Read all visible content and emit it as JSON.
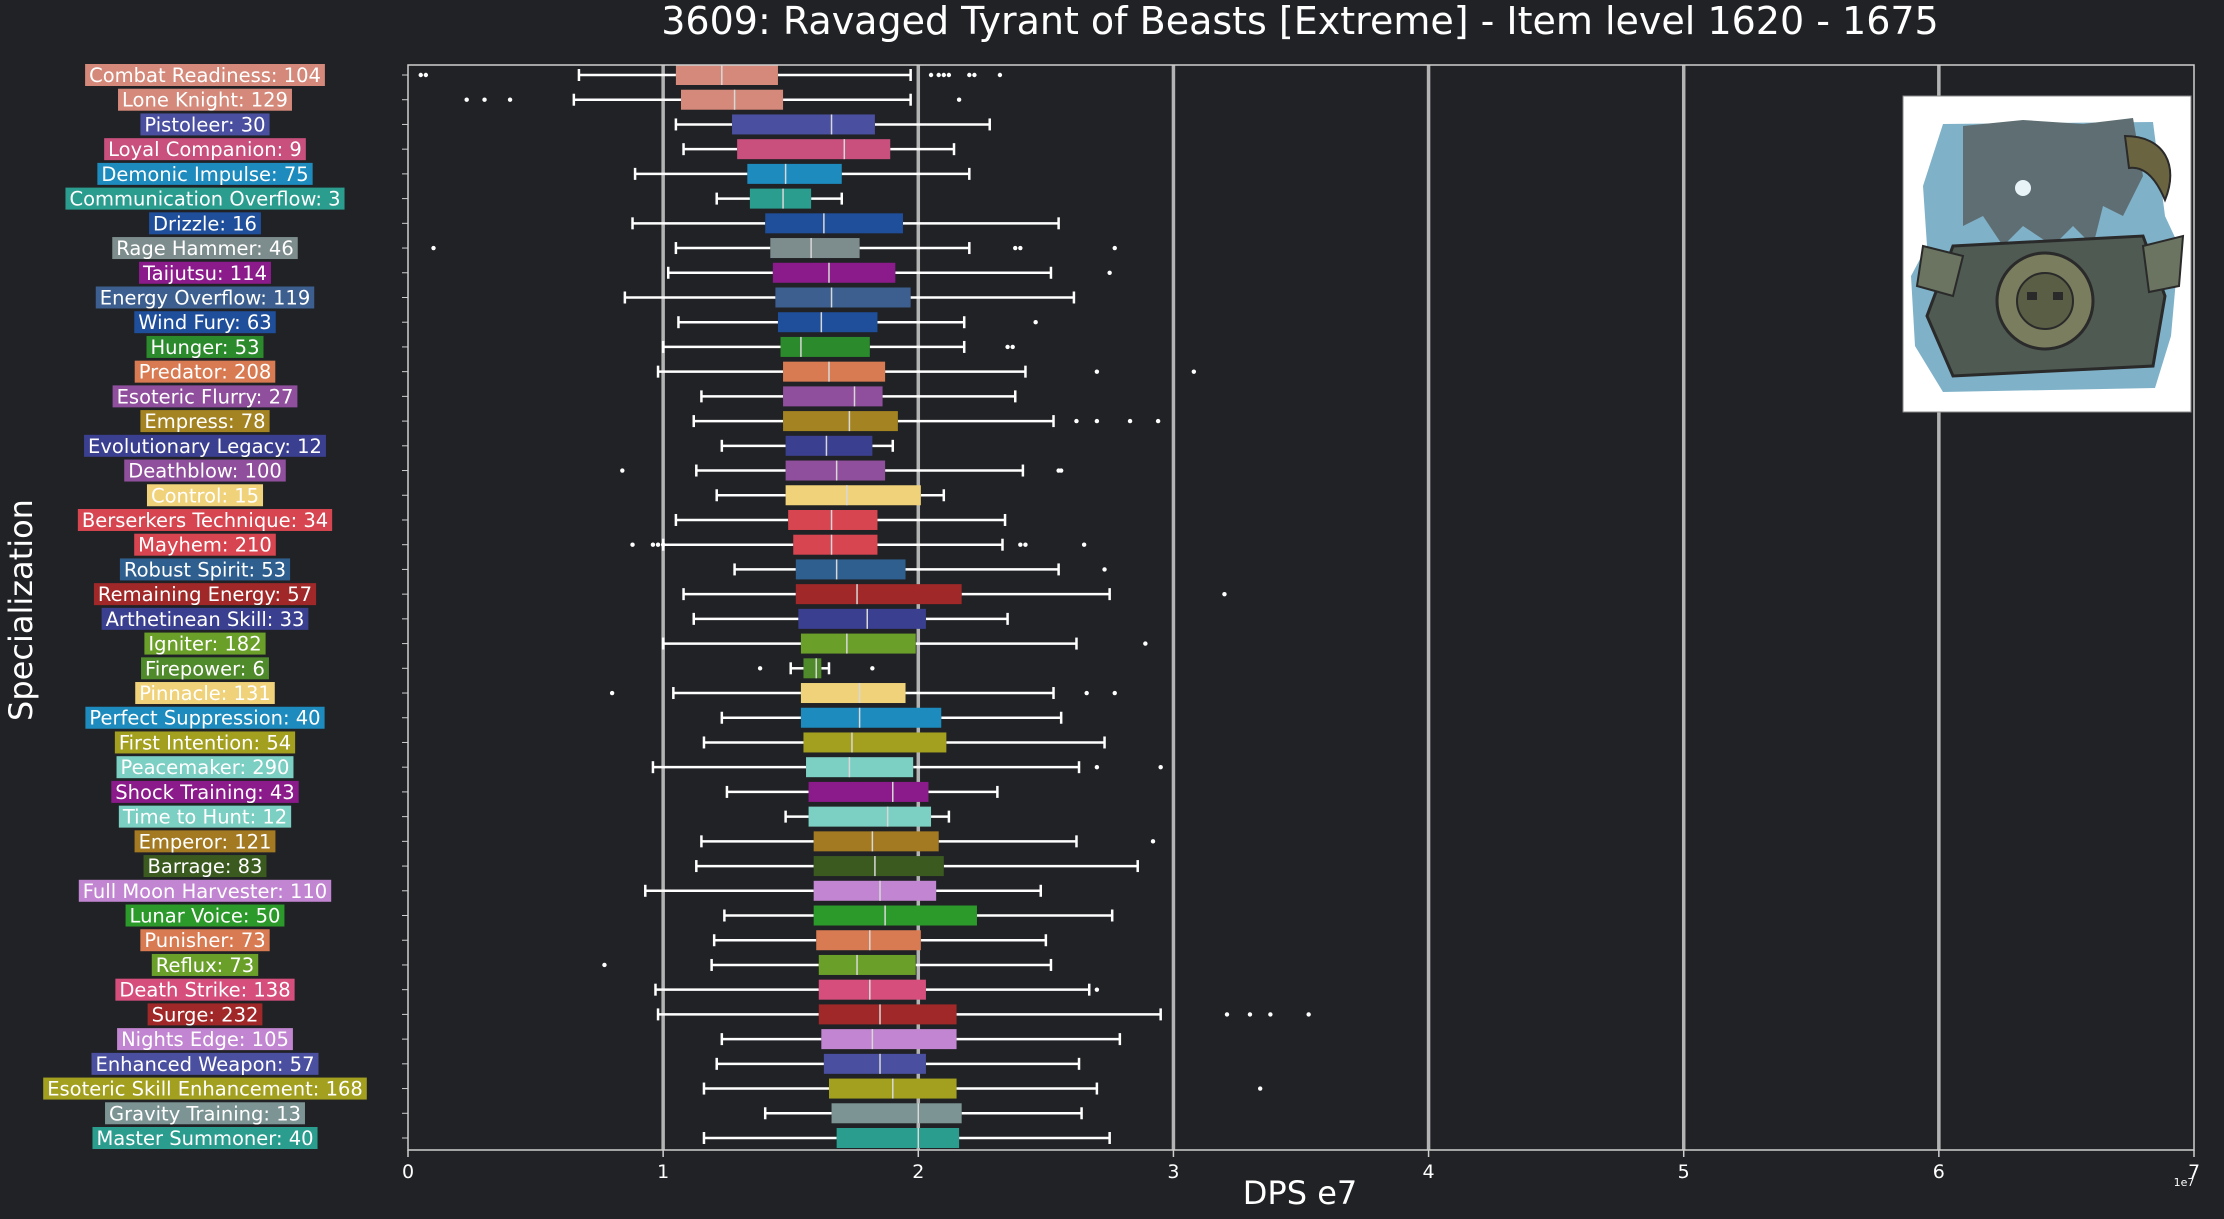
{
  "chart_data": {
    "type": "box",
    "title": "3609: Ravaged Tyrant of Beasts [Extreme] - Item level 1620 - 1675",
    "xlabel": "DPS e7",
    "ylabel": "Specialization",
    "x_exponent_label": "1e7",
    "xlim": [
      0,
      7
    ],
    "x_ticks": [
      0,
      1,
      2,
      3,
      4,
      5,
      6,
      7
    ],
    "x_tick_labels": [
      "0",
      "1",
      "2",
      "3",
      "4",
      "5",
      "6",
      "7"
    ],
    "grid": "vertical",
    "image": "boss-portrait",
    "boxes": [
      {
        "label": "Combat Readiness: 104",
        "color": "#d4897a",
        "whisker_low": 0.67,
        "q1": 1.05,
        "median": 1.23,
        "q3": 1.45,
        "whisker_high": 1.97,
        "outliers": [
          0.05,
          0.07,
          2.05,
          2.08,
          2.1,
          2.12,
          2.2,
          2.22,
          2.32
        ]
      },
      {
        "label": "Lone Knight: 129",
        "color": "#d4897a",
        "whisker_low": 0.65,
        "q1": 1.07,
        "median": 1.28,
        "q3": 1.47,
        "whisker_high": 1.97,
        "outliers": [
          0.23,
          0.3,
          0.4,
          2.16
        ]
      },
      {
        "label": "Pistoleer: 30",
        "color": "#4a4fa0",
        "whisker_low": 1.05,
        "q1": 1.27,
        "median": 1.66,
        "q3": 1.83,
        "whisker_high": 2.28,
        "outliers": []
      },
      {
        "label": "Loyal Companion: 9",
        "color": "#c94f7c",
        "whisker_low": 1.08,
        "q1": 1.29,
        "median": 1.71,
        "q3": 1.89,
        "whisker_high": 2.14,
        "outliers": []
      },
      {
        "label": "Demonic Impulse: 75",
        "color": "#1d8bbd",
        "whisker_low": 0.89,
        "q1": 1.33,
        "median": 1.48,
        "q3": 1.7,
        "whisker_high": 2.2,
        "outliers": []
      },
      {
        "label": "Communication Overflow: 3",
        "color": "#2a9d8f",
        "whisker_low": 1.21,
        "q1": 1.34,
        "median": 1.47,
        "q3": 1.58,
        "whisker_high": 1.7,
        "outliers": []
      },
      {
        "label": "Drizzle: 16",
        "color": "#1f4e9a",
        "whisker_low": 0.88,
        "q1": 1.4,
        "median": 1.63,
        "q3": 1.94,
        "whisker_high": 2.55,
        "outliers": []
      },
      {
        "label": "Rage Hammer: 46",
        "color": "#7d8c8c",
        "whisker_low": 1.05,
        "q1": 1.42,
        "median": 1.58,
        "q3": 1.77,
        "whisker_high": 2.2,
        "outliers": [
          0.1,
          2.38,
          2.4,
          2.77
        ]
      },
      {
        "label": "Taijutsu: 114",
        "color": "#8b1a8b",
        "whisker_low": 1.02,
        "q1": 1.43,
        "median": 1.65,
        "q3": 1.91,
        "whisker_high": 2.52,
        "outliers": [
          2.75
        ]
      },
      {
        "label": "Energy Overflow: 119",
        "color": "#3c5f8f",
        "whisker_low": 0.85,
        "q1": 1.44,
        "median": 1.66,
        "q3": 1.97,
        "whisker_high": 2.61,
        "outliers": []
      },
      {
        "label": "Wind Fury: 63",
        "color": "#1f4e9a",
        "whisker_low": 1.06,
        "q1": 1.45,
        "median": 1.62,
        "q3": 1.84,
        "whisker_high": 2.18,
        "outliers": [
          2.46
        ]
      },
      {
        "label": "Hunger: 53",
        "color": "#2b8a2b",
        "whisker_low": 1.0,
        "q1": 1.46,
        "median": 1.54,
        "q3": 1.81,
        "whisker_high": 2.18,
        "outliers": [
          2.35,
          2.37
        ]
      },
      {
        "label": "Predator: 208",
        "color": "#d97b52",
        "whisker_low": 0.98,
        "q1": 1.47,
        "median": 1.65,
        "q3": 1.87,
        "whisker_high": 2.42,
        "outliers": [
          2.7,
          3.08
        ]
      },
      {
        "label": "Esoteric Flurry: 27",
        "color": "#8f4f9c",
        "whisker_low": 1.15,
        "q1": 1.47,
        "median": 1.75,
        "q3": 1.86,
        "whisker_high": 2.38,
        "outliers": []
      },
      {
        "label": "Empress: 78",
        "color": "#a38322",
        "whisker_low": 1.12,
        "q1": 1.47,
        "median": 1.73,
        "q3": 1.92,
        "whisker_high": 2.53,
        "outliers": [
          2.62,
          2.7,
          2.83,
          2.94
        ]
      },
      {
        "label": "Evolutionary Legacy: 12",
        "color": "#3b3f8f",
        "whisker_low": 1.23,
        "q1": 1.48,
        "median": 1.64,
        "q3": 1.82,
        "whisker_high": 1.9,
        "outliers": []
      },
      {
        "label": "Deathblow: 100",
        "color": "#8f4f9c",
        "whisker_low": 1.13,
        "q1": 1.48,
        "median": 1.68,
        "q3": 1.87,
        "whisker_high": 2.41,
        "outliers": [
          0.84,
          2.55,
          2.56
        ]
      },
      {
        "label": "Control: 15",
        "color": "#f0d27a",
        "whisker_low": 1.21,
        "q1": 1.48,
        "median": 1.72,
        "q3": 2.01,
        "whisker_high": 2.1,
        "outliers": []
      },
      {
        "label": "Berserkers Technique: 34",
        "color": "#d64550",
        "whisker_low": 1.05,
        "q1": 1.49,
        "median": 1.66,
        "q3": 1.84,
        "whisker_high": 2.34,
        "outliers": []
      },
      {
        "label": "Mayhem: 210",
        "color": "#d64550",
        "whisker_low": 1.0,
        "q1": 1.51,
        "median": 1.66,
        "q3": 1.84,
        "whisker_high": 2.33,
        "outliers": [
          0.88,
          0.96,
          0.98,
          1.0,
          2.4,
          2.42,
          2.65
        ]
      },
      {
        "label": "Robust Spirit: 53",
        "color": "#2f5f8f",
        "whisker_low": 1.28,
        "q1": 1.52,
        "median": 1.68,
        "q3": 1.95,
        "whisker_high": 2.55,
        "outliers": [
          2.73
        ]
      },
      {
        "label": "Remaining Energy: 57",
        "color": "#a02828",
        "whisker_low": 1.08,
        "q1": 1.52,
        "median": 1.76,
        "q3": 2.17,
        "whisker_high": 2.75,
        "outliers": [
          3.2
        ]
      },
      {
        "label": "Arthetinean Skill: 33",
        "color": "#3b3f8f",
        "whisker_low": 1.12,
        "q1": 1.53,
        "median": 1.8,
        "q3": 2.03,
        "whisker_high": 2.35,
        "outliers": []
      },
      {
        "label": "Igniter: 182",
        "color": "#6aa02a",
        "whisker_low": 1.0,
        "q1": 1.54,
        "median": 1.72,
        "q3": 1.99,
        "whisker_high": 2.62,
        "outliers": [
          2.89
        ]
      },
      {
        "label": "Firepower: 6",
        "color": "#4f8a2b",
        "whisker_low": 1.5,
        "q1": 1.55,
        "median": 1.6,
        "q3": 1.62,
        "whisker_high": 1.65,
        "outliers": [
          1.38,
          1.82
        ]
      },
      {
        "label": "Pinnacle: 131",
        "color": "#f0d27a",
        "whisker_low": 1.04,
        "q1": 1.54,
        "median": 1.77,
        "q3": 1.95,
        "whisker_high": 2.53,
        "outliers": [
          0.8,
          2.66,
          2.77
        ]
      },
      {
        "label": "Perfect Suppression: 40",
        "color": "#1d8bbd",
        "whisker_low": 1.23,
        "q1": 1.54,
        "median": 1.77,
        "q3": 2.09,
        "whisker_high": 2.56,
        "outliers": []
      },
      {
        "label": "First Intention: 54",
        "color": "#a3a020",
        "whisker_low": 1.16,
        "q1": 1.55,
        "median": 1.74,
        "q3": 2.11,
        "whisker_high": 2.73,
        "outliers": []
      },
      {
        "label": "Peacemaker: 290",
        "color": "#7ccfc3",
        "whisker_low": 0.96,
        "q1": 1.56,
        "median": 1.73,
        "q3": 1.98,
        "whisker_high": 2.63,
        "outliers": [
          2.7,
          2.95
        ]
      },
      {
        "label": "Shock Training: 43",
        "color": "#8b1a8b",
        "whisker_low": 1.25,
        "q1": 1.57,
        "median": 1.9,
        "q3": 2.04,
        "whisker_high": 2.31,
        "outliers": []
      },
      {
        "label": "Time to Hunt: 12",
        "color": "#7ccfc3",
        "whisker_low": 1.48,
        "q1": 1.57,
        "median": 1.88,
        "q3": 2.05,
        "whisker_high": 2.12,
        "outliers": []
      },
      {
        "label": "Emperor: 121",
        "color": "#a37a22",
        "whisker_low": 1.15,
        "q1": 1.59,
        "median": 1.82,
        "q3": 2.08,
        "whisker_high": 2.62,
        "outliers": [
          2.92
        ]
      },
      {
        "label": "Barrage: 83",
        "color": "#3a5a1f",
        "whisker_low": 1.13,
        "q1": 1.59,
        "median": 1.83,
        "q3": 2.1,
        "whisker_high": 2.86,
        "outliers": []
      },
      {
        "label": "Full Moon Harvester: 110",
        "color": "#c285d1",
        "whisker_low": 0.93,
        "q1": 1.59,
        "median": 1.85,
        "q3": 2.07,
        "whisker_high": 2.48,
        "outliers": []
      },
      {
        "label": "Lunar Voice: 50",
        "color": "#2b9a2b",
        "whisker_low": 1.24,
        "q1": 1.59,
        "median": 1.87,
        "q3": 2.23,
        "whisker_high": 2.76,
        "outliers": []
      },
      {
        "label": "Punisher: 73",
        "color": "#d97b52",
        "whisker_low": 1.2,
        "q1": 1.6,
        "median": 1.81,
        "q3": 2.01,
        "whisker_high": 2.5,
        "outliers": []
      },
      {
        "label": "Reflux: 73",
        "color": "#6aa02a",
        "whisker_low": 1.19,
        "q1": 1.61,
        "median": 1.76,
        "q3": 1.99,
        "whisker_high": 2.52,
        "outliers": [
          0.77
        ]
      },
      {
        "label": "Death Strike: 138",
        "color": "#d64f7c",
        "whisker_low": 0.97,
        "q1": 1.61,
        "median": 1.81,
        "q3": 2.03,
        "whisker_high": 2.67,
        "outliers": [
          2.7
        ]
      },
      {
        "label": "Surge: 232",
        "color": "#a02828",
        "whisker_low": 0.98,
        "q1": 1.61,
        "median": 1.85,
        "q3": 2.15,
        "whisker_high": 2.95,
        "outliers": [
          3.21,
          3.3,
          3.38,
          3.53
        ]
      },
      {
        "label": "Nights Edge: 105",
        "color": "#c285d1",
        "whisker_low": 1.23,
        "q1": 1.62,
        "median": 1.82,
        "q3": 2.15,
        "whisker_high": 2.79,
        "outliers": []
      },
      {
        "label": "Enhanced Weapon: 57",
        "color": "#4a4fa0",
        "whisker_low": 1.21,
        "q1": 1.63,
        "median": 1.85,
        "q3": 2.03,
        "whisker_high": 2.63,
        "outliers": []
      },
      {
        "label": "Esoteric Skill Enhancement: 168",
        "color": "#a3a020",
        "whisker_low": 1.16,
        "q1": 1.65,
        "median": 1.9,
        "q3": 2.15,
        "whisker_high": 2.7,
        "outliers": [
          3.34
        ]
      },
      {
        "label": "Gravity Training: 13",
        "color": "#7d9494",
        "whisker_low": 1.4,
        "q1": 1.66,
        "median": 2.0,
        "q3": 2.17,
        "whisker_high": 2.64,
        "outliers": []
      },
      {
        "label": "Master Summoner: 40",
        "color": "#2a9d8f",
        "whisker_low": 1.16,
        "q1": 1.68,
        "median": 2.0,
        "q3": 2.16,
        "whisker_high": 2.75,
        "outliers": []
      }
    ]
  }
}
